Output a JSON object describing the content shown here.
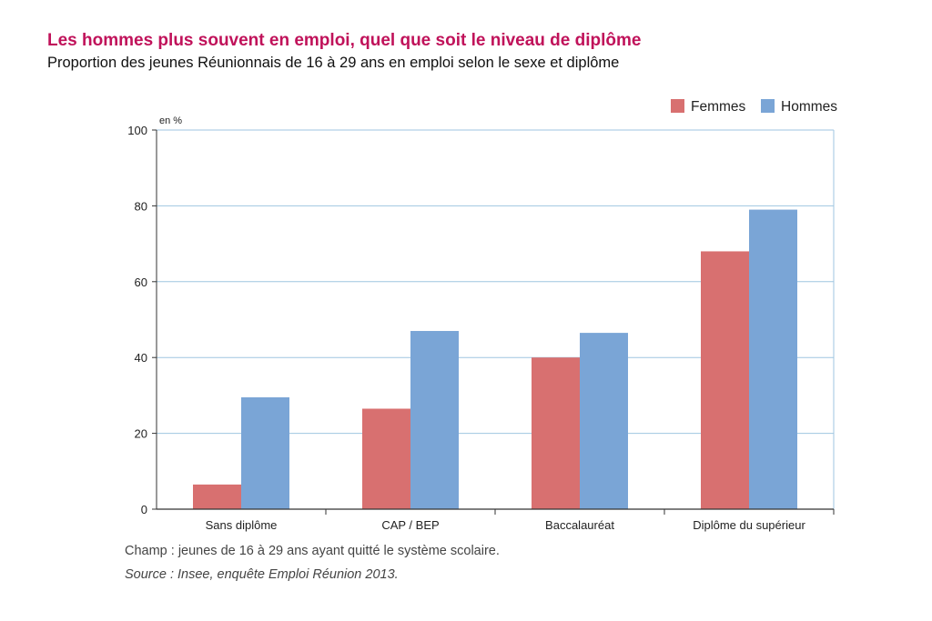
{
  "header": {
    "title": "Les hommes plus souvent en emploi, quel que soit le niveau de diplôme",
    "subtitle": "Proportion des jeunes Réunionnais de 16 à 29 ans en emploi selon le sexe et diplôme"
  },
  "footer": {
    "note": "Champ : jeunes de 16 à 29 ans ayant quitté le système scolaire.",
    "source": "Source : Insee, enquête Emploi Réunion 2013."
  },
  "chart_data": {
    "type": "bar",
    "title": "",
    "unit_label": "en %",
    "xlabel": "",
    "ylabel": "",
    "categories": [
      "Sans diplôme",
      "CAP / BEP",
      "Baccalauréat",
      "Diplôme du supérieur"
    ],
    "series": [
      {
        "name": "Femmes",
        "color": "#d87070",
        "values": [
          6.5,
          26.5,
          40,
          68
        ]
      },
      {
        "name": "Hommes",
        "color": "#7aa5d6",
        "values": [
          29.5,
          47,
          46.5,
          79
        ]
      }
    ],
    "ylim": [
      0,
      100
    ],
    "yticks": [
      0,
      20,
      40,
      60,
      80,
      100
    ],
    "grid": true,
    "legend_position": "top-right"
  }
}
